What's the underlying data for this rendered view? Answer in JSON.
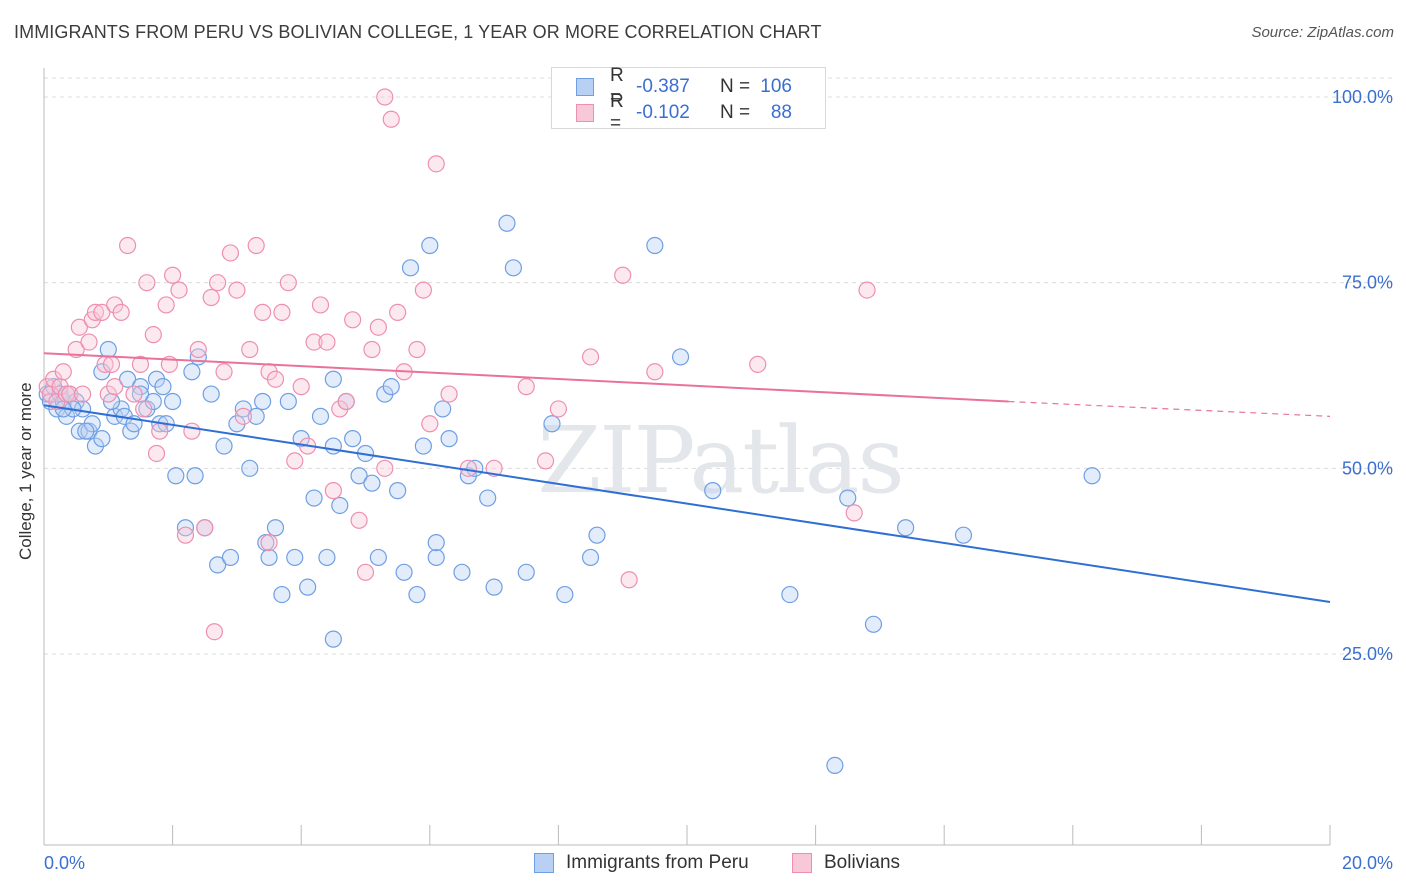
{
  "title": "IMMIGRANTS FROM PERU VS BOLIVIAN COLLEGE, 1 YEAR OR MORE CORRELATION CHART",
  "source": "Source: ZipAtlas.com",
  "watermark": "ZIPatlas",
  "legend": {
    "r_label": "R =",
    "n_label": "N =",
    "rows": [
      {
        "r": "-0.387",
        "n": "106",
        "color": "#6f9fe3",
        "fill": "#b8d0f3"
      },
      {
        "r": "-0.102",
        "n": "88",
        "color": "#ee8fb0",
        "fill": "#f8c8d8"
      }
    ]
  },
  "chart_data": {
    "type": "scatter",
    "xlabel": "",
    "ylabel": "College, 1 year or more",
    "xlim": [
      0,
      20
    ],
    "ylim": [
      0,
      105
    ],
    "x_tick_labels": [
      "0.0%",
      "20.0%"
    ],
    "y_tick_labels": [
      "100.0%",
      "75.0%",
      "50.0%",
      "25.0%"
    ],
    "y_ticks": [
      100,
      75,
      50,
      25
    ],
    "series": [
      {
        "name": "Immigrants from Peru",
        "stroke": "#6f9fe3",
        "fill": "#b8d0f366",
        "line_color": "#2f6fd4",
        "trend": {
          "x0": 0,
          "y0": 58.5,
          "x1": 20,
          "y1": 32
        },
        "points": [
          [
            0.05,
            60
          ],
          [
            0.1,
            59
          ],
          [
            0.15,
            61
          ],
          [
            0.2,
            58
          ],
          [
            0.25,
            60
          ],
          [
            0.3,
            59
          ],
          [
            0.35,
            57
          ],
          [
            0.4,
            60
          ],
          [
            0.5,
            59
          ],
          [
            0.55,
            55
          ],
          [
            0.6,
            58
          ],
          [
            0.7,
            55
          ],
          [
            0.75,
            56
          ],
          [
            0.8,
            53
          ],
          [
            0.9,
            54
          ],
          [
            0.9,
            63
          ],
          [
            1.0,
            66
          ],
          [
            1.1,
            57
          ],
          [
            1.2,
            58
          ],
          [
            1.25,
            57
          ],
          [
            1.3,
            62
          ],
          [
            1.35,
            55
          ],
          [
            1.4,
            56
          ],
          [
            1.5,
            61
          ],
          [
            1.6,
            58
          ],
          [
            1.7,
            59
          ],
          [
            1.75,
            62
          ],
          [
            1.8,
            56
          ],
          [
            1.85,
            61
          ],
          [
            1.9,
            56
          ],
          [
            2.0,
            59
          ],
          [
            2.05,
            49
          ],
          [
            2.2,
            42
          ],
          [
            2.3,
            63
          ],
          [
            2.4,
            65
          ],
          [
            2.5,
            42
          ],
          [
            2.6,
            60
          ],
          [
            2.7,
            37
          ],
          [
            2.8,
            53
          ],
          [
            2.9,
            38
          ],
          [
            3.0,
            56
          ],
          [
            3.1,
            58
          ],
          [
            3.2,
            50
          ],
          [
            3.3,
            57
          ],
          [
            3.4,
            59
          ],
          [
            3.45,
            40
          ],
          [
            3.5,
            38
          ],
          [
            3.6,
            42
          ],
          [
            3.7,
            33
          ],
          [
            3.8,
            59
          ],
          [
            3.9,
            38
          ],
          [
            4.0,
            54
          ],
          [
            4.1,
            34
          ],
          [
            4.2,
            46
          ],
          [
            4.3,
            57
          ],
          [
            4.4,
            38
          ],
          [
            4.5,
            53
          ],
          [
            4.5,
            62
          ],
          [
            4.6,
            45
          ],
          [
            4.7,
            59
          ],
          [
            4.8,
            54
          ],
          [
            4.9,
            49
          ],
          [
            5.0,
            52
          ],
          [
            5.1,
            48
          ],
          [
            5.2,
            38
          ],
          [
            5.3,
            60
          ],
          [
            5.4,
            61
          ],
          [
            5.5,
            47
          ],
          [
            5.6,
            36
          ],
          [
            5.7,
            77
          ],
          [
            5.8,
            33
          ],
          [
            5.9,
            53
          ],
          [
            6.0,
            80
          ],
          [
            6.1,
            38
          ],
          [
            6.2,
            58
          ],
          [
            6.3,
            54
          ],
          [
            6.5,
            36
          ],
          [
            6.6,
            49
          ],
          [
            6.7,
            50
          ],
          [
            6.9,
            46
          ],
          [
            7.0,
            34
          ],
          [
            7.2,
            83
          ],
          [
            7.3,
            77
          ],
          [
            7.5,
            36
          ],
          [
            7.9,
            56
          ],
          [
            8.1,
            33
          ],
          [
            8.5,
            38
          ],
          [
            8.6,
            41
          ],
          [
            9.5,
            80
          ],
          [
            9.9,
            65
          ],
          [
            10.4,
            47
          ],
          [
            11.6,
            33
          ],
          [
            12.5,
            46
          ],
          [
            12.9,
            29
          ],
          [
            13.4,
            42
          ],
          [
            14.3,
            41
          ],
          [
            16.3,
            49
          ],
          [
            12.3,
            10
          ],
          [
            4.5,
            27
          ],
          [
            6.1,
            40
          ],
          [
            2.35,
            49
          ],
          [
            1.5,
            60
          ],
          [
            0.45,
            58
          ],
          [
            0.65,
            55
          ],
          [
            1.05,
            59
          ],
          [
            0.3,
            58
          ]
        ]
      },
      {
        "name": "Bolivians",
        "stroke": "#ee8fb0",
        "fill": "#f8c8d866",
        "line_color": "#e9729b",
        "trend": {
          "x0": 0,
          "y0": 65.5,
          "x1": 15,
          "y1": 59,
          "dash_x1": 20,
          "dash_y1": 57
        },
        "points": [
          [
            0.05,
            61
          ],
          [
            0.1,
            60
          ],
          [
            0.15,
            62
          ],
          [
            0.2,
            59
          ],
          [
            0.25,
            61
          ],
          [
            0.3,
            63
          ],
          [
            0.35,
            60
          ],
          [
            0.4,
            60
          ],
          [
            0.5,
            66
          ],
          [
            0.55,
            69
          ],
          [
            0.6,
            60
          ],
          [
            0.7,
            67
          ],
          [
            0.75,
            70
          ],
          [
            0.8,
            71
          ],
          [
            0.9,
            71
          ],
          [
            0.95,
            64
          ],
          [
            1.0,
            60
          ],
          [
            1.05,
            64
          ],
          [
            1.1,
            72
          ],
          [
            1.2,
            71
          ],
          [
            1.3,
            80
          ],
          [
            1.4,
            60
          ],
          [
            1.5,
            64
          ],
          [
            1.55,
            58
          ],
          [
            1.6,
            75
          ],
          [
            1.7,
            68
          ],
          [
            1.75,
            52
          ],
          [
            1.8,
            55
          ],
          [
            1.9,
            72
          ],
          [
            1.95,
            64
          ],
          [
            2.0,
            76
          ],
          [
            2.1,
            74
          ],
          [
            2.2,
            41
          ],
          [
            2.3,
            55
          ],
          [
            2.4,
            66
          ],
          [
            2.5,
            42
          ],
          [
            2.6,
            73
          ],
          [
            2.7,
            75
          ],
          [
            2.8,
            63
          ],
          [
            2.9,
            79
          ],
          [
            3.0,
            74
          ],
          [
            3.1,
            57
          ],
          [
            3.2,
            66
          ],
          [
            3.3,
            80
          ],
          [
            3.4,
            71
          ],
          [
            3.5,
            63
          ],
          [
            3.6,
            62
          ],
          [
            3.7,
            71
          ],
          [
            3.8,
            75
          ],
          [
            3.9,
            51
          ],
          [
            4.0,
            61
          ],
          [
            4.1,
            53
          ],
          [
            4.2,
            67
          ],
          [
            4.3,
            72
          ],
          [
            4.4,
            67
          ],
          [
            4.5,
            47
          ],
          [
            4.6,
            58
          ],
          [
            4.7,
            59
          ],
          [
            4.8,
            70
          ],
          [
            4.9,
            43
          ],
          [
            5.0,
            36
          ],
          [
            5.1,
            66
          ],
          [
            5.2,
            69
          ],
          [
            5.3,
            50
          ],
          [
            5.4,
            97
          ],
          [
            5.5,
            71
          ],
          [
            5.6,
            63
          ],
          [
            5.8,
            66
          ],
          [
            5.9,
            74
          ],
          [
            6.0,
            56
          ],
          [
            6.3,
            60
          ],
          [
            6.6,
            50
          ],
          [
            7.0,
            50
          ],
          [
            7.5,
            61
          ],
          [
            7.8,
            51
          ],
          [
            8.0,
            58
          ],
          [
            8.5,
            65
          ],
          [
            9.0,
            76
          ],
          [
            9.1,
            35
          ],
          [
            9.5,
            63
          ],
          [
            11.1,
            64
          ],
          [
            12.6,
            44
          ],
          [
            12.8,
            74
          ],
          [
            5.3,
            100
          ],
          [
            6.1,
            91
          ],
          [
            2.65,
            28
          ],
          [
            3.5,
            40
          ],
          [
            1.1,
            61
          ]
        ]
      }
    ]
  },
  "bottom_legend": [
    {
      "label": "Immigrants from Peru",
      "color": "#6f9fe3",
      "fill": "#b8d0f3"
    },
    {
      "label": "Bolivians",
      "color": "#ee8fb0",
      "fill": "#f8c8d8"
    }
  ]
}
